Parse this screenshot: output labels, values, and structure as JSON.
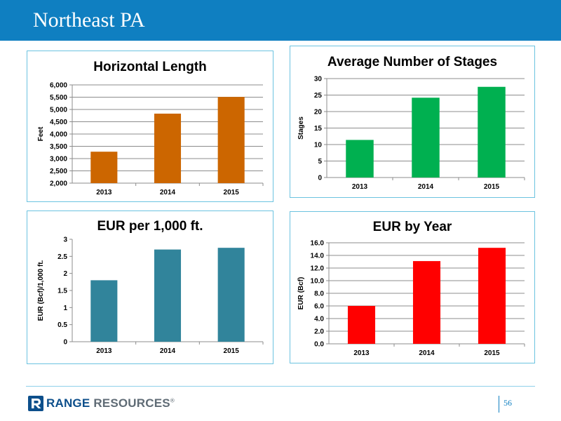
{
  "header": {
    "title": "Northeast PA",
    "background": "#0f7fc1"
  },
  "footer": {
    "brand_main": "RANGE",
    "brand_secondary": " RESOURCES",
    "brand_mark": "®",
    "page_number": "56"
  },
  "chart_data": [
    {
      "type": "bar",
      "title": "Horizontal Length",
      "xlabel": "",
      "ylabel": "Feet",
      "categories": [
        "2013",
        "2014",
        "2015"
      ],
      "values": [
        3280,
        4830,
        5510
      ],
      "ylim": [
        2000,
        6000
      ],
      "yticks": [
        "2,000",
        "2,500",
        "3,000",
        "3,500",
        "4,000",
        "4,500",
        "5,000",
        "5,500",
        "6,000"
      ],
      "grid": true,
      "color": "#cc6600"
    },
    {
      "type": "bar",
      "title": "Average Number of Stages",
      "xlabel": "",
      "ylabel": "Stages",
      "categories": [
        "2013",
        "2014",
        "2015"
      ],
      "values": [
        11.4,
        24.2,
        27.5
      ],
      "ylim": [
        0,
        30
      ],
      "yticks": [
        "0",
        "5",
        "10",
        "15",
        "20",
        "25",
        "30"
      ],
      "grid": true,
      "color": "#00b050"
    },
    {
      "type": "bar",
      "title": "EUR per 1,000 ft.",
      "xlabel": "",
      "ylabel": "EUR (Bcf)/1,000 ft.",
      "categories": [
        "2013",
        "2014",
        "2015"
      ],
      "values": [
        1.8,
        2.7,
        2.75
      ],
      "ylim": [
        0,
        3
      ],
      "yticks": [
        "0",
        "0.5",
        "1",
        "1.5",
        "2",
        "2.5",
        "3"
      ],
      "grid": false,
      "color": "#31849b"
    },
    {
      "type": "bar",
      "title": "EUR by Year",
      "xlabel": "",
      "ylabel": "EUR (Bcf)",
      "categories": [
        "2013",
        "2014",
        "2015"
      ],
      "values": [
        6.0,
        13.1,
        15.2
      ],
      "ylim": [
        0,
        16
      ],
      "yticks": [
        "0.0",
        "2.0",
        "4.0",
        "6.0",
        "8.0",
        "10.0",
        "12.0",
        "14.0",
        "16.0"
      ],
      "grid": true,
      "color": "#ff0000"
    }
  ]
}
